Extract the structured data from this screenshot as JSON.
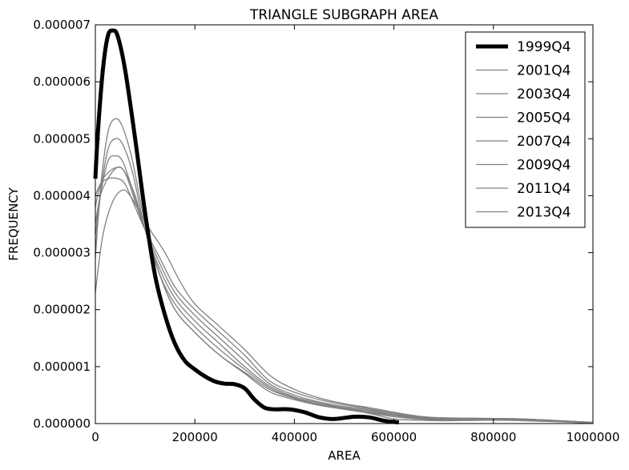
{
  "chart_data": {
    "type": "line",
    "title": "TRIANGLE SUBGRAPH AREA",
    "xlabel": "AREA",
    "ylabel": "FREQUENCY",
    "xlim": [
      0,
      1000000
    ],
    "ylim": [
      0,
      7e-06
    ],
    "x_ticks": [
      0,
      200000,
      400000,
      600000,
      800000,
      1000000
    ],
    "x_tick_labels": [
      "0",
      "200000",
      "400000",
      "600000",
      "800000",
      "1000000"
    ],
    "y_ticks": [
      0,
      1e-06,
      2e-06,
      3e-06,
      4e-06,
      5e-06,
      6e-06,
      7e-06
    ],
    "y_tick_labels": [
      "0.000000",
      "0.000001",
      "0.000002",
      "0.000003",
      "0.000004",
      "0.000005",
      "0.000006",
      "0.000007"
    ],
    "legend_position": "top-right",
    "series": [
      {
        "name": "1999Q4",
        "color": "#000000",
        "emphasis": "bold",
        "points": [
          [
            0,
            4.3e-06
          ],
          [
            5000,
            5.1e-06
          ],
          [
            15000,
            6.2e-06
          ],
          [
            25000,
            6.8e-06
          ],
          [
            35000,
            6.9e-06
          ],
          [
            45000,
            6.8e-06
          ],
          [
            60000,
            6.2e-06
          ],
          [
            80000,
            5e-06
          ],
          [
            100000,
            3.7e-06
          ],
          [
            120000,
            2.6e-06
          ],
          [
            140000,
            1.9e-06
          ],
          [
            160000,
            1.4e-06
          ],
          [
            180000,
            1.1e-06
          ],
          [
            200000,
            9.5e-07
          ],
          [
            220000,
            8.3e-07
          ],
          [
            240000,
            7.4e-07
          ],
          [
            260000,
            7e-07
          ],
          [
            280000,
            6.9e-07
          ],
          [
            300000,
            6.2e-07
          ],
          [
            320000,
            4.2e-07
          ],
          [
            340000,
            2.8e-07
          ],
          [
            360000,
            2.5e-07
          ],
          [
            390000,
            2.5e-07
          ],
          [
            420000,
            2e-07
          ],
          [
            450000,
            1.1e-07
          ],
          [
            480000,
            8e-08
          ],
          [
            520000,
            1.2e-07
          ],
          [
            550000,
            1.1e-07
          ],
          [
            580000,
            5e-08
          ],
          [
            610000,
            2e-08
          ]
        ]
      },
      {
        "name": "2001Q4",
        "color": "#808080",
        "points": [
          [
            0,
            2.9e-06
          ],
          [
            10000,
            4.1e-06
          ],
          [
            25000,
            5.1e-06
          ],
          [
            40000,
            5.35e-06
          ],
          [
            55000,
            5.2e-06
          ],
          [
            75000,
            4.6e-06
          ],
          [
            100000,
            3.5e-06
          ],
          [
            130000,
            2.6e-06
          ],
          [
            160000,
            2e-06
          ],
          [
            200000,
            1.6e-06
          ],
          [
            250000,
            1.2e-06
          ],
          [
            300000,
            8.8e-07
          ],
          [
            350000,
            5.6e-07
          ],
          [
            400000,
            4.2e-07
          ],
          [
            450000,
            3.2e-07
          ],
          [
            500000,
            2.5e-07
          ],
          [
            550000,
            1.8e-07
          ],
          [
            600000,
            8e-08
          ],
          [
            650000,
            6e-08
          ],
          [
            700000,
            5e-08
          ],
          [
            800000,
            6e-08
          ],
          [
            860000,
            5e-08
          ],
          [
            1000000,
            1e-08
          ]
        ]
      },
      {
        "name": "2003Q4",
        "color": "#808080",
        "points": [
          [
            0,
            3e-06
          ],
          [
            10000,
            4e-06
          ],
          [
            25000,
            4.8e-06
          ],
          [
            40000,
            5e-06
          ],
          [
            55000,
            4.9e-06
          ],
          [
            75000,
            4.4e-06
          ],
          [
            100000,
            3.4e-06
          ],
          [
            130000,
            2.6e-06
          ],
          [
            160000,
            2e-06
          ],
          [
            200000,
            1.6e-06
          ],
          [
            250000,
            1.2e-06
          ],
          [
            300000,
            9e-07
          ],
          [
            350000,
            6e-07
          ],
          [
            400000,
            4.4e-07
          ],
          [
            450000,
            3.3e-07
          ],
          [
            500000,
            2.6e-07
          ],
          [
            550000,
            1.9e-07
          ],
          [
            600000,
            1.2e-07
          ],
          [
            650000,
            8e-08
          ],
          [
            700000,
            6e-08
          ],
          [
            800000,
            7e-08
          ],
          [
            870000,
            6e-08
          ],
          [
            1000000,
            1e-08
          ]
        ]
      },
      {
        "name": "2005Q4",
        "color": "#808080",
        "points": [
          [
            0,
            3.3e-06
          ],
          [
            10000,
            4e-06
          ],
          [
            25000,
            4.6e-06
          ],
          [
            40000,
            4.7e-06
          ],
          [
            55000,
            4.6e-06
          ],
          [
            75000,
            4.1e-06
          ],
          [
            100000,
            3.4e-06
          ],
          [
            130000,
            2.6e-06
          ],
          [
            160000,
            2.1e-06
          ],
          [
            200000,
            1.7e-06
          ],
          [
            250000,
            1.3e-06
          ],
          [
            300000,
            9.5e-07
          ],
          [
            350000,
            6.3e-07
          ],
          [
            400000,
            4.5e-07
          ],
          [
            450000,
            3.4e-07
          ],
          [
            500000,
            2.7e-07
          ],
          [
            550000,
            2e-07
          ],
          [
            600000,
            1.4e-07
          ],
          [
            650000,
            9e-08
          ],
          [
            700000,
            7e-08
          ],
          [
            800000,
            7e-08
          ],
          [
            860000,
            6e-08
          ],
          [
            1000000,
            1e-08
          ]
        ]
      },
      {
        "name": "2007Q4",
        "color": "#808080",
        "points": [
          [
            0,
            3.5e-06
          ],
          [
            10000,
            4e-06
          ],
          [
            25000,
            4.3e-06
          ],
          [
            45000,
            4.5e-06
          ],
          [
            60000,
            4.4e-06
          ],
          [
            80000,
            4e-06
          ],
          [
            100000,
            3.4e-06
          ],
          [
            130000,
            2.7e-06
          ],
          [
            160000,
            2.2e-06
          ],
          [
            200000,
            1.8e-06
          ],
          [
            250000,
            1.4e-06
          ],
          [
            300000,
            1e-06
          ],
          [
            350000,
            6.6e-07
          ],
          [
            400000,
            4.7e-07
          ],
          [
            450000,
            3.6e-07
          ],
          [
            500000,
            2.8e-07
          ],
          [
            550000,
            2.2e-07
          ],
          [
            600000,
            1.5e-07
          ],
          [
            650000,
            1e-07
          ],
          [
            700000,
            8e-08
          ],
          [
            800000,
            8e-08
          ],
          [
            860000,
            7e-08
          ],
          [
            1000000,
            1e-08
          ]
        ]
      },
      {
        "name": "2009Q4",
        "color": "#808080",
        "points": [
          [
            0,
            3.8e-06
          ],
          [
            10000,
            4.2e-06
          ],
          [
            25000,
            4.4e-06
          ],
          [
            45000,
            4.5e-06
          ],
          [
            60000,
            4.4e-06
          ],
          [
            80000,
            3.9e-06
          ],
          [
            100000,
            3.4e-06
          ],
          [
            130000,
            2.8e-06
          ],
          [
            160000,
            2.3e-06
          ],
          [
            200000,
            1.9e-06
          ],
          [
            250000,
            1.5e-06
          ],
          [
            300000,
            1.1e-06
          ],
          [
            350000,
            7e-07
          ],
          [
            400000,
            5e-07
          ],
          [
            450000,
            3.8e-07
          ],
          [
            500000,
            3e-07
          ],
          [
            550000,
            2.4e-07
          ],
          [
            600000,
            1.6e-07
          ],
          [
            650000,
            1.1e-07
          ],
          [
            700000,
            9e-08
          ],
          [
            800000,
            8e-08
          ],
          [
            860000,
            8e-08
          ],
          [
            1000000,
            2e-08
          ]
        ]
      },
      {
        "name": "2011Q4",
        "color": "#808080",
        "points": [
          [
            0,
            4e-06
          ],
          [
            10000,
            4.2e-06
          ],
          [
            25000,
            4.3e-06
          ],
          [
            45000,
            4.3e-06
          ],
          [
            60000,
            4.2e-06
          ],
          [
            80000,
            3.8e-06
          ],
          [
            100000,
            3.4e-06
          ],
          [
            130000,
            2.9e-06
          ],
          [
            160000,
            2.4e-06
          ],
          [
            200000,
            2e-06
          ],
          [
            250000,
            1.6e-06
          ],
          [
            300000,
            1.2e-06
          ],
          [
            350000,
            7.5e-07
          ],
          [
            400000,
            5.5e-07
          ],
          [
            450000,
            4.2e-07
          ],
          [
            500000,
            3.3e-07
          ],
          [
            550000,
            2.6e-07
          ],
          [
            600000,
            1.8e-07
          ],
          [
            650000,
            1.2e-07
          ],
          [
            700000,
            1e-07
          ],
          [
            800000,
            9e-08
          ],
          [
            860000,
            8e-08
          ],
          [
            1000000,
            2e-08
          ]
        ]
      },
      {
        "name": "2013Q4",
        "color": "#808080",
        "points": [
          [
            0,
            2.3e-06
          ],
          [
            15000,
            3.3e-06
          ],
          [
            35000,
            3.9e-06
          ],
          [
            55000,
            4.1e-06
          ],
          [
            70000,
            4e-06
          ],
          [
            90000,
            3.7e-06
          ],
          [
            110000,
            3.4e-06
          ],
          [
            140000,
            3e-06
          ],
          [
            170000,
            2.5e-06
          ],
          [
            200000,
            2.1e-06
          ],
          [
            250000,
            1.7e-06
          ],
          [
            300000,
            1.3e-06
          ],
          [
            350000,
            8.5e-07
          ],
          [
            400000,
            6e-07
          ],
          [
            450000,
            4.5e-07
          ],
          [
            500000,
            3.5e-07
          ],
          [
            550000,
            2.8e-07
          ],
          [
            600000,
            2e-07
          ],
          [
            650000,
            1.3e-07
          ],
          [
            700000,
            1e-07
          ],
          [
            800000,
            9e-08
          ],
          [
            860000,
            8e-08
          ],
          [
            1000000,
            2e-08
          ]
        ]
      }
    ]
  }
}
